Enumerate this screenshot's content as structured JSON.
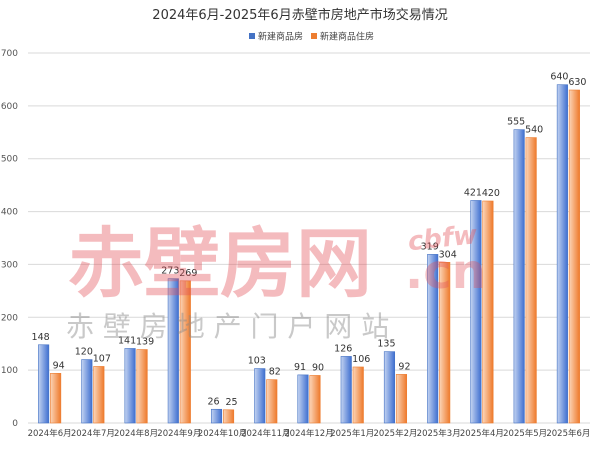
{
  "chart_data": {
    "type": "bar",
    "title": "2024年6月-2025年6月赤壁市房地产市场交易情况",
    "xlabel": "",
    "ylabel": "",
    "categories": [
      "2024年6月",
      "2024年7月",
      "2024年8月",
      "2024年9月",
      "2024年10月",
      "2024年11月",
      "2024年12月",
      "2025年1月",
      "2025年2月",
      "2025年3月",
      "2025年4月",
      "2025年5月",
      "2025年6月"
    ],
    "series": [
      {
        "name": "新建商品房",
        "values": [
          148,
          120,
          141,
          273,
          26,
          103,
          91,
          126,
          135,
          319,
          421,
          555,
          640
        ],
        "color": "#4472C4"
      },
      {
        "name": "新建商品住房",
        "values": [
          94,
          107,
          139,
          269,
          25,
          82,
          90,
          106,
          92,
          304,
          420,
          540,
          630
        ],
        "color": "#ED7D31"
      }
    ],
    "ylim": [
      0,
      700
    ],
    "yticks": [
      0,
      100,
      200,
      300,
      400,
      500,
      600,
      700
    ],
    "grid": true,
    "legend_position": "top-right"
  },
  "watermark": {
    "main_text": "赤壁房网",
    "domain_text": ".cn",
    "side_text": "cbfw",
    "sub_text": "赤 壁 房 地 产 门 户 网 站"
  }
}
